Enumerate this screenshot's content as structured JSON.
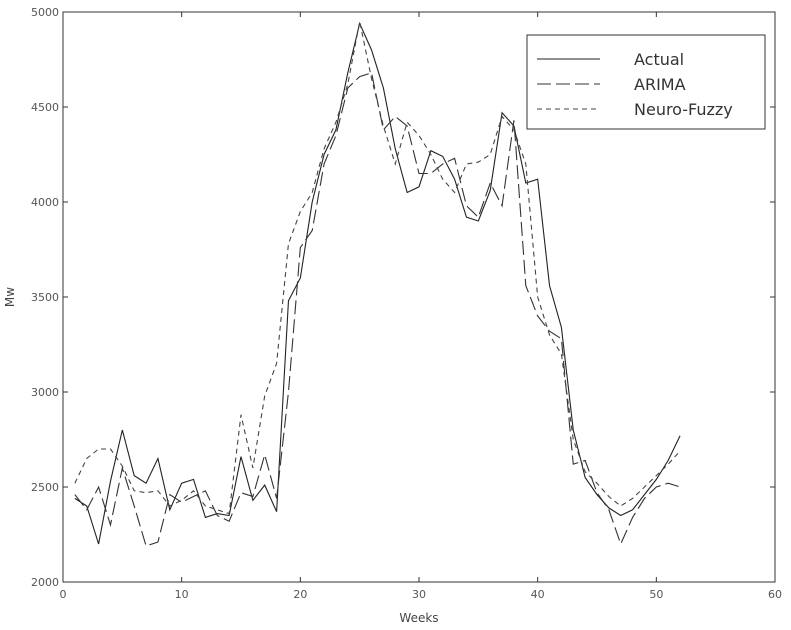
{
  "chart_data": {
    "type": "line",
    "xlabel": "Weeks",
    "ylabel": "Mw",
    "xlim": [
      0,
      60
    ],
    "ylim": [
      2000,
      5000
    ],
    "xticks": [
      0,
      10,
      20,
      30,
      40,
      50,
      60
    ],
    "yticks": [
      2000,
      2500,
      3000,
      3500,
      4000,
      4500,
      5000
    ],
    "grid": false,
    "legend_position": "top-right",
    "x": [
      1,
      2,
      3,
      4,
      5,
      6,
      7,
      8,
      9,
      10,
      11,
      12,
      13,
      14,
      15,
      16,
      17,
      18,
      19,
      20,
      21,
      22,
      23,
      24,
      25,
      26,
      27,
      28,
      29,
      30,
      31,
      32,
      33,
      34,
      35,
      36,
      37,
      38,
      39,
      40,
      41,
      42,
      43,
      44,
      45,
      46,
      47,
      48,
      49,
      50,
      51,
      52
    ],
    "series": [
      {
        "name": "Actual",
        "dash": "solid",
        "color": "#222222",
        "values": [
          2440,
          2400,
          2200,
          2530,
          2800,
          2560,
          2520,
          2650,
          2380,
          2520,
          2540,
          2340,
          2360,
          2350,
          2660,
          2430,
          2510,
          2370,
          3480,
          3600,
          4000,
          4250,
          4380,
          4680,
          4940,
          4800,
          4600,
          4280,
          4050,
          4080,
          4270,
          4240,
          4120,
          3920,
          3900,
          4060,
          4470,
          4400,
          4100,
          4120,
          3560,
          3340,
          2800,
          2550,
          2460,
          2390,
          2350,
          2380,
          2460,
          2540,
          2640,
          2770
        ]
      },
      {
        "name": "ARIMA",
        "dash": "longdash",
        "color": "#333333",
        "values": [
          2460,
          2380,
          2500,
          2300,
          2600,
          2400,
          2190,
          2210,
          2460,
          2420,
          2450,
          2480,
          2350,
          2320,
          2470,
          2450,
          2670,
          2440,
          3000,
          3760,
          3850,
          4200,
          4350,
          4600,
          4660,
          4680,
          4380,
          4450,
          4400,
          4150,
          4150,
          4200,
          4230,
          3980,
          3920,
          4100,
          3980,
          4430,
          3560,
          3400,
          3320,
          3280,
          2620,
          2640,
          2470,
          2380,
          2200,
          2340,
          2440,
          2500,
          2520,
          2500
        ]
      },
      {
        "name": "Neuro-Fuzzy",
        "dash": "shortdash",
        "color": "#444444",
        "values": [
          2520,
          2650,
          2700,
          2700,
          2610,
          2480,
          2470,
          2480,
          2400,
          2430,
          2480,
          2400,
          2380,
          2360,
          2880,
          2600,
          2980,
          3150,
          3780,
          3950,
          4050,
          4280,
          4420,
          4620,
          4950,
          4650,
          4400,
          4200,
          4420,
          4350,
          4250,
          4120,
          4050,
          4200,
          4210,
          4250,
          4450,
          4380,
          4200,
          3500,
          3300,
          3200,
          2750,
          2580,
          2520,
          2450,
          2400,
          2440,
          2500,
          2560,
          2620,
          2690
        ]
      }
    ]
  }
}
